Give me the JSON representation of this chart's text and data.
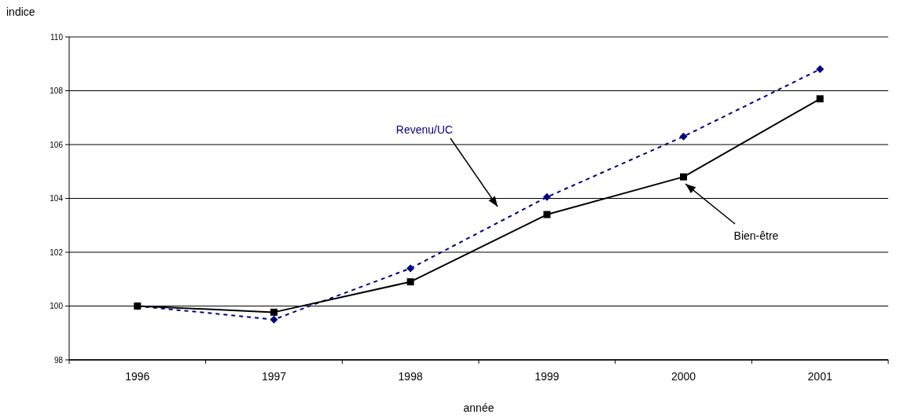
{
  "chart_data": {
    "type": "line",
    "xlabel": "année",
    "ylabel": "indice",
    "categories": [
      "1996",
      "1997",
      "1998",
      "1999",
      "2000",
      "2001"
    ],
    "series": [
      {
        "name": "Revenu/UC",
        "color": "#000080",
        "values": [
          100,
          99.5,
          101.4,
          104.05,
          106.3,
          108.8
        ],
        "marker": "diamond",
        "line_style": "dashed"
      },
      {
        "name": "Bien-être",
        "color": "#000000",
        "values": [
          100,
          99.77,
          100.9,
          103.4,
          104.8,
          107.7
        ],
        "marker": "square",
        "line_style": "solid"
      }
    ],
    "ylim": [
      98,
      110
    ],
    "yticks": [
      98,
      100,
      102,
      104,
      106,
      108,
      110
    ],
    "grid": "y"
  }
}
